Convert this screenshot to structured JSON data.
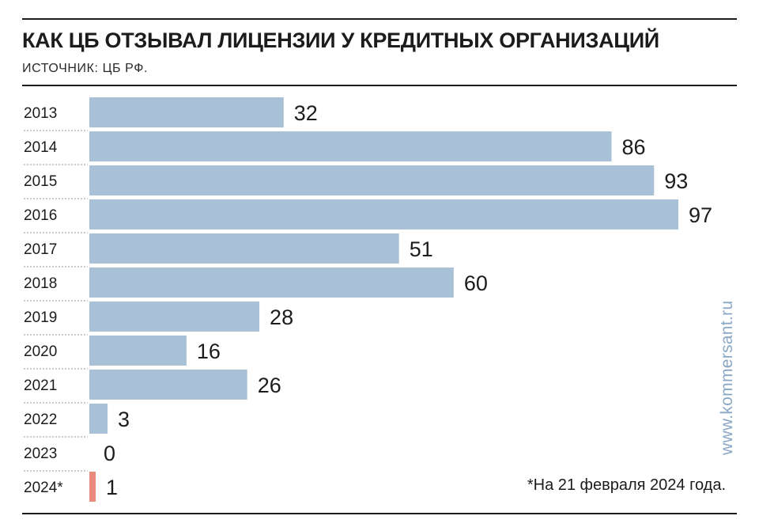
{
  "header": {
    "title": "КАК ЦБ ОТЗЫВАЛ ЛИЦЕНЗИИ У КРЕДИТНЫХ ОРГАНИЗАЦИЙ",
    "source": "ИСТОЧНИК: ЦБ РФ."
  },
  "footnote": "*На 21 февраля 2024 года.",
  "watermark": "www.kommersant.ru",
  "colors": {
    "bar": "#a9c1d7",
    "highlight": "#ea8a7e",
    "watermark": "#8aa7c6"
  },
  "chart_data": {
    "type": "bar",
    "orientation": "horizontal",
    "title": "КАК ЦБ ОТЗЫВАЛ ЛИЦЕНЗИИ У КРЕДИТНЫХ ОРГАНИЗАЦИЙ",
    "categories": [
      "2013",
      "2014",
      "2015",
      "2016",
      "2017",
      "2018",
      "2019",
      "2020",
      "2021",
      "2022",
      "2023",
      "2024*"
    ],
    "values": [
      32,
      86,
      93,
      97,
      51,
      60,
      28,
      16,
      26,
      3,
      0,
      1
    ],
    "highlight_category": "2024*",
    "xlim": [
      0,
      97
    ],
    "grid": false,
    "data_labels": true
  }
}
